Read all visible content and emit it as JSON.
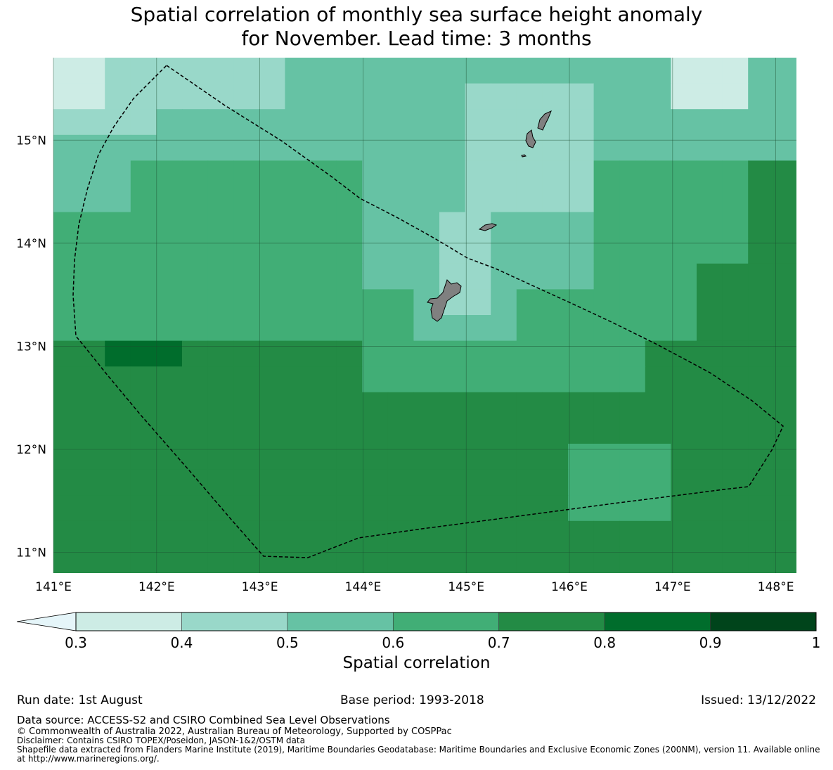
{
  "title": {
    "line1": "Spatial correlation of monthly sea surface height anomaly",
    "line2": "for November. Lead time: 3 months"
  },
  "map": {
    "lon_labels": [
      "141°E",
      "142°E",
      "143°E",
      "144°E",
      "145°E",
      "146°E",
      "147°E",
      "148°E"
    ],
    "lon_values": [
      141,
      142,
      143,
      144,
      145,
      146,
      147,
      148
    ],
    "lat_labels": [
      "15°N",
      "14°N",
      "13°N",
      "12°N",
      "11°N"
    ],
    "lat_values": [
      15,
      14,
      13,
      12,
      11
    ],
    "extent": {
      "lon": [
        141.0,
        148.2
      ],
      "lat": [
        10.8,
        15.8
      ]
    },
    "grid_lines": true,
    "land_color": "#808080",
    "eez_boundary_style": "dashed",
    "class_colors": {
      "0.3-0.4": "#cdece5",
      "0.4-0.5": "#99d8c9",
      "0.5-0.6": "#66c2a4",
      "0.6-0.7": "#41ae76",
      "0.7-0.8": "#238b45",
      "0.8-0.9": "#006d2c",
      "0.9-1": "#00441b"
    }
  },
  "colorbar": {
    "ticks": [
      "0.3",
      "0.4",
      "0.5",
      "0.6",
      "0.7",
      "0.8",
      "0.9",
      "1"
    ],
    "colors": [
      "#cdece5",
      "#99d8c9",
      "#66c2a4",
      "#41ae76",
      "#238b45",
      "#006d2c",
      "#00441b"
    ],
    "extend_color": "#e5f5f9",
    "label": "Spatial correlation"
  },
  "footer": {
    "run_date": "Run date: 1st August",
    "base_period": "Base period: 1993-2018",
    "issued": "Issued: 13/12/2022",
    "data_source": "Data source: ACCESS-S2 and CSIRO Combined Sea Level Observations",
    "copyright": "© Commonwealth of Australia 2022, Australian Bureau of Meteorology, Supported by COSPPac",
    "disclaimer": "Disclaimer: Contains CSIRO TOPEX/Poseidon, JASON-1&2/OSTM data",
    "shapefile": "Shapefile data extracted from Flanders Marine Institute (2019), Maritime Boundaries Geodatabase: Maritime Boundaries and Exclusive Economic Zones (200NM), version 11. Available online at http://www.marineregions.org/."
  }
}
